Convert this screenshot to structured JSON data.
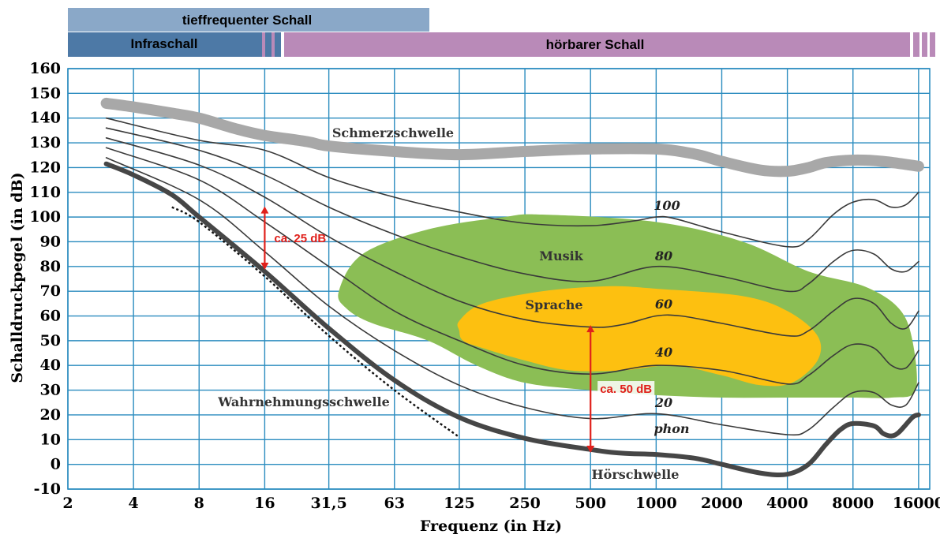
{
  "chart_data": {
    "type": "line",
    "xlabel": "Frequenz (in Hz)",
    "ylabel": "Schalldruckpegel (in dB)",
    "x_scale": "log2",
    "x_ticks": [
      "2",
      "4",
      "8",
      "16",
      "31,5",
      "63",
      "125",
      "250",
      "500",
      "1000",
      "2000",
      "4000",
      "8000",
      "16000"
    ],
    "x_tick_values": [
      2,
      4,
      8,
      16,
      31.5,
      63,
      125,
      250,
      500,
      1000,
      2000,
      4000,
      8000,
      16000
    ],
    "y_ticks": [
      "-10",
      "0",
      "10",
      "20",
      "30",
      "40",
      "50",
      "60",
      "70",
      "80",
      "90",
      "100",
      "110",
      "120",
      "130",
      "140",
      "150",
      "160"
    ],
    "ylim": [
      -10,
      160
    ],
    "xlim": [
      2,
      18000
    ],
    "grid": true,
    "grid_color": "#2b8cbf",
    "bands": {
      "tieffrequent": {
        "label": "tieffrequenter Schall",
        "x_range": [
          2,
          100
        ],
        "color": "#8aa8c8"
      },
      "infraschall": {
        "label": "Infraschall",
        "x_range": [
          2,
          15
        ],
        "color": "#4d79a6"
      },
      "hoerbar": {
        "label": "hörbarer Schall",
        "x_range": [
          20,
          16000
        ],
        "color": "#b98ab8"
      }
    },
    "areas": [
      {
        "name": "Musik",
        "color": "#8bbe55",
        "points": [
          [
            35,
            70
          ],
          [
            45,
            85
          ],
          [
            90,
            95
          ],
          [
            200,
            100
          ],
          [
            300,
            101
          ],
          [
            1000,
            98
          ],
          [
            2500,
            90
          ],
          [
            5000,
            78
          ],
          [
            9000,
            72
          ],
          [
            13000,
            63
          ],
          [
            15000,
            50
          ],
          [
            15500,
            30
          ],
          [
            12000,
            27
          ],
          [
            8000,
            27
          ],
          [
            4000,
            27
          ],
          [
            2000,
            27
          ],
          [
            1000,
            28
          ],
          [
            500,
            30
          ],
          [
            250,
            33
          ],
          [
            150,
            40
          ],
          [
            90,
            50
          ],
          [
            50,
            57
          ],
          [
            38,
            63
          ]
        ]
      },
      {
        "name": "Sprache",
        "color": "#fdc010",
        "points": [
          [
            125,
            58
          ],
          [
            160,
            65
          ],
          [
            300,
            70
          ],
          [
            600,
            72
          ],
          [
            1000,
            71
          ],
          [
            2500,
            68
          ],
          [
            4000,
            62
          ],
          [
            5500,
            52
          ],
          [
            5500,
            42
          ],
          [
            4200,
            33
          ],
          [
            3000,
            32
          ],
          [
            2000,
            36
          ],
          [
            1200,
            40
          ],
          [
            700,
            38
          ],
          [
            400,
            38
          ],
          [
            250,
            42
          ],
          [
            160,
            47
          ],
          [
            130,
            50
          ],
          [
            125,
            54
          ]
        ]
      }
    ],
    "series": [
      {
        "name": "Schmerzschwelle",
        "color": "#a8a8a8",
        "width": 14,
        "points": [
          [
            3,
            146
          ],
          [
            4,
            144.5
          ],
          [
            6,
            142
          ],
          [
            8,
            140
          ],
          [
            12,
            135.5
          ],
          [
            16,
            133
          ],
          [
            25,
            130.5
          ],
          [
            31.5,
            128.7
          ],
          [
            63,
            126.5
          ],
          [
            125,
            125.2
          ],
          [
            250,
            126.5
          ],
          [
            500,
            127.5
          ],
          [
            1000,
            127.5
          ],
          [
            1500,
            125.5
          ],
          [
            2000,
            122.5
          ],
          [
            3000,
            119
          ],
          [
            4000,
            118.5
          ],
          [
            5000,
            120
          ],
          [
            6000,
            122
          ],
          [
            8000,
            123
          ],
          [
            11000,
            122.5
          ],
          [
            16000,
            120.5
          ]
        ]
      },
      {
        "name": "100",
        "color": "#3a3a3a",
        "width": 1.6,
        "points": [
          [
            3,
            140
          ],
          [
            8,
            131
          ],
          [
            16,
            127
          ],
          [
            31.5,
            116
          ],
          [
            63,
            108
          ],
          [
            125,
            102
          ],
          [
            250,
            97.5
          ],
          [
            500,
            96.5
          ],
          [
            800,
            98.5
          ],
          [
            1000,
            100
          ],
          [
            1200,
            99.5
          ],
          [
            2000,
            94
          ],
          [
            4000,
            88
          ],
          [
            5000,
            91
          ],
          [
            6500,
            101
          ],
          [
            8000,
            106
          ],
          [
            10000,
            107
          ],
          [
            12000,
            104
          ],
          [
            14000,
            105
          ],
          [
            16000,
            110
          ]
        ]
      },
      {
        "name": "80",
        "color": "#3a3a3a",
        "width": 1.6,
        "points": [
          [
            3,
            136
          ],
          [
            8,
            127
          ],
          [
            16,
            117
          ],
          [
            31.5,
            104
          ],
          [
            63,
            93
          ],
          [
            125,
            84
          ],
          [
            250,
            77
          ],
          [
            500,
            74
          ],
          [
            1000,
            80
          ],
          [
            2000,
            76
          ],
          [
            4000,
            70
          ],
          [
            5000,
            73
          ],
          [
            6500,
            82
          ],
          [
            8000,
            86.5
          ],
          [
            10000,
            85
          ],
          [
            12000,
            79
          ],
          [
            14000,
            78
          ],
          [
            16000,
            82
          ]
        ]
      },
      {
        "name": "60",
        "color": "#3a3a3a",
        "width": 1.6,
        "points": [
          [
            3,
            132
          ],
          [
            8,
            121
          ],
          [
            16,
            108
          ],
          [
            31.5,
            92
          ],
          [
            63,
            78
          ],
          [
            125,
            66
          ],
          [
            250,
            58.5
          ],
          [
            500,
            55.5
          ],
          [
            700,
            56.5
          ],
          [
            1000,
            60
          ],
          [
            1300,
            60
          ],
          [
            2000,
            57
          ],
          [
            4000,
            52
          ],
          [
            5000,
            54
          ],
          [
            6500,
            62
          ],
          [
            8000,
            67
          ],
          [
            10000,
            65
          ],
          [
            12000,
            57
          ],
          [
            14000,
            55
          ],
          [
            16000,
            62
          ]
        ]
      },
      {
        "name": "40",
        "color": "#3a3a3a",
        "width": 1.6,
        "points": [
          [
            3,
            128
          ],
          [
            8,
            115
          ],
          [
            16,
            98
          ],
          [
            31.5,
            80
          ],
          [
            63,
            62
          ],
          [
            125,
            50
          ],
          [
            250,
            40
          ],
          [
            500,
            36.5
          ],
          [
            1000,
            40
          ],
          [
            2000,
            38
          ],
          [
            4000,
            32.5
          ],
          [
            5000,
            36
          ],
          [
            6500,
            44
          ],
          [
            8000,
            48.5
          ],
          [
            10000,
            47
          ],
          [
            12000,
            40
          ],
          [
            14000,
            39
          ],
          [
            16000,
            46
          ]
        ]
      },
      {
        "name": "20",
        "color": "#3a3a3a",
        "width": 1.6,
        "points": [
          [
            3,
            124
          ],
          [
            8,
            107
          ],
          [
            16,
            86
          ],
          [
            31.5,
            64
          ],
          [
            63,
            46
          ],
          [
            125,
            32
          ],
          [
            250,
            23
          ],
          [
            500,
            18.5
          ],
          [
            1000,
            20.5
          ],
          [
            2000,
            16
          ],
          [
            4000,
            12
          ],
          [
            5000,
            14
          ],
          [
            6500,
            23
          ],
          [
            8000,
            29
          ],
          [
            10000,
            29
          ],
          [
            12000,
            24
          ],
          [
            14000,
            24
          ],
          [
            16000,
            33
          ]
        ]
      },
      {
        "name": "Hörschwelle",
        "color": "#464646",
        "width": 6,
        "points": [
          [
            3,
            121.5
          ],
          [
            4,
            117
          ],
          [
            6,
            109
          ],
          [
            8,
            100
          ],
          [
            16,
            78
          ],
          [
            31.5,
            55
          ],
          [
            63,
            34
          ],
          [
            125,
            19
          ],
          [
            250,
            10.5
          ],
          [
            500,
            6
          ],
          [
            700,
            4.5
          ],
          [
            1000,
            4
          ],
          [
            1500,
            2.5
          ],
          [
            2000,
            0
          ],
          [
            3000,
            -3.5
          ],
          [
            4000,
            -4
          ],
          [
            5000,
            0
          ],
          [
            6000,
            8
          ],
          [
            7000,
            14
          ],
          [
            8000,
            16.5
          ],
          [
            10000,
            15.5
          ],
          [
            11000,
            12.5
          ],
          [
            12000,
            11.5
          ],
          [
            13000,
            13
          ],
          [
            15000,
            19
          ],
          [
            16000,
            20
          ]
        ]
      }
    ],
    "dotted_line": {
      "name": "Wahrnehmungsschwelle",
      "color": "#111111",
      "points": [
        [
          6,
          104
        ],
        [
          8,
          98
        ],
        [
          16,
          76
        ],
        [
          31.5,
          52
        ],
        [
          63,
          30
        ],
        [
          125,
          11
        ]
      ]
    },
    "arrows": [
      {
        "x": 16,
        "y_from": 79,
        "y_to": 104,
        "label": "ca. 25 dB",
        "color": "#e0201b"
      },
      {
        "x": 500,
        "y_from": 5,
        "y_to": 56,
        "label": "ca. 50 dB",
        "color": "#e0201b"
      }
    ]
  },
  "labels": {
    "tieffrequent": "tieffrequenter Schall",
    "infraschall": "Infraschall",
    "hoerbar": "hörbarer Schall",
    "schmerzschwelle": "Schmerzschwelle",
    "wahrnehmung": "Wahrnehmungsschwelle",
    "hoerschwelle": "Hörschwelle",
    "musik": "Musik",
    "sprache": "Sprache",
    "phon": "phon",
    "arrow25": "ca. 25 dB",
    "arrow50": "ca. 50 dB"
  },
  "phon_labels": [
    "100",
    "80",
    "60",
    "40",
    "20"
  ]
}
